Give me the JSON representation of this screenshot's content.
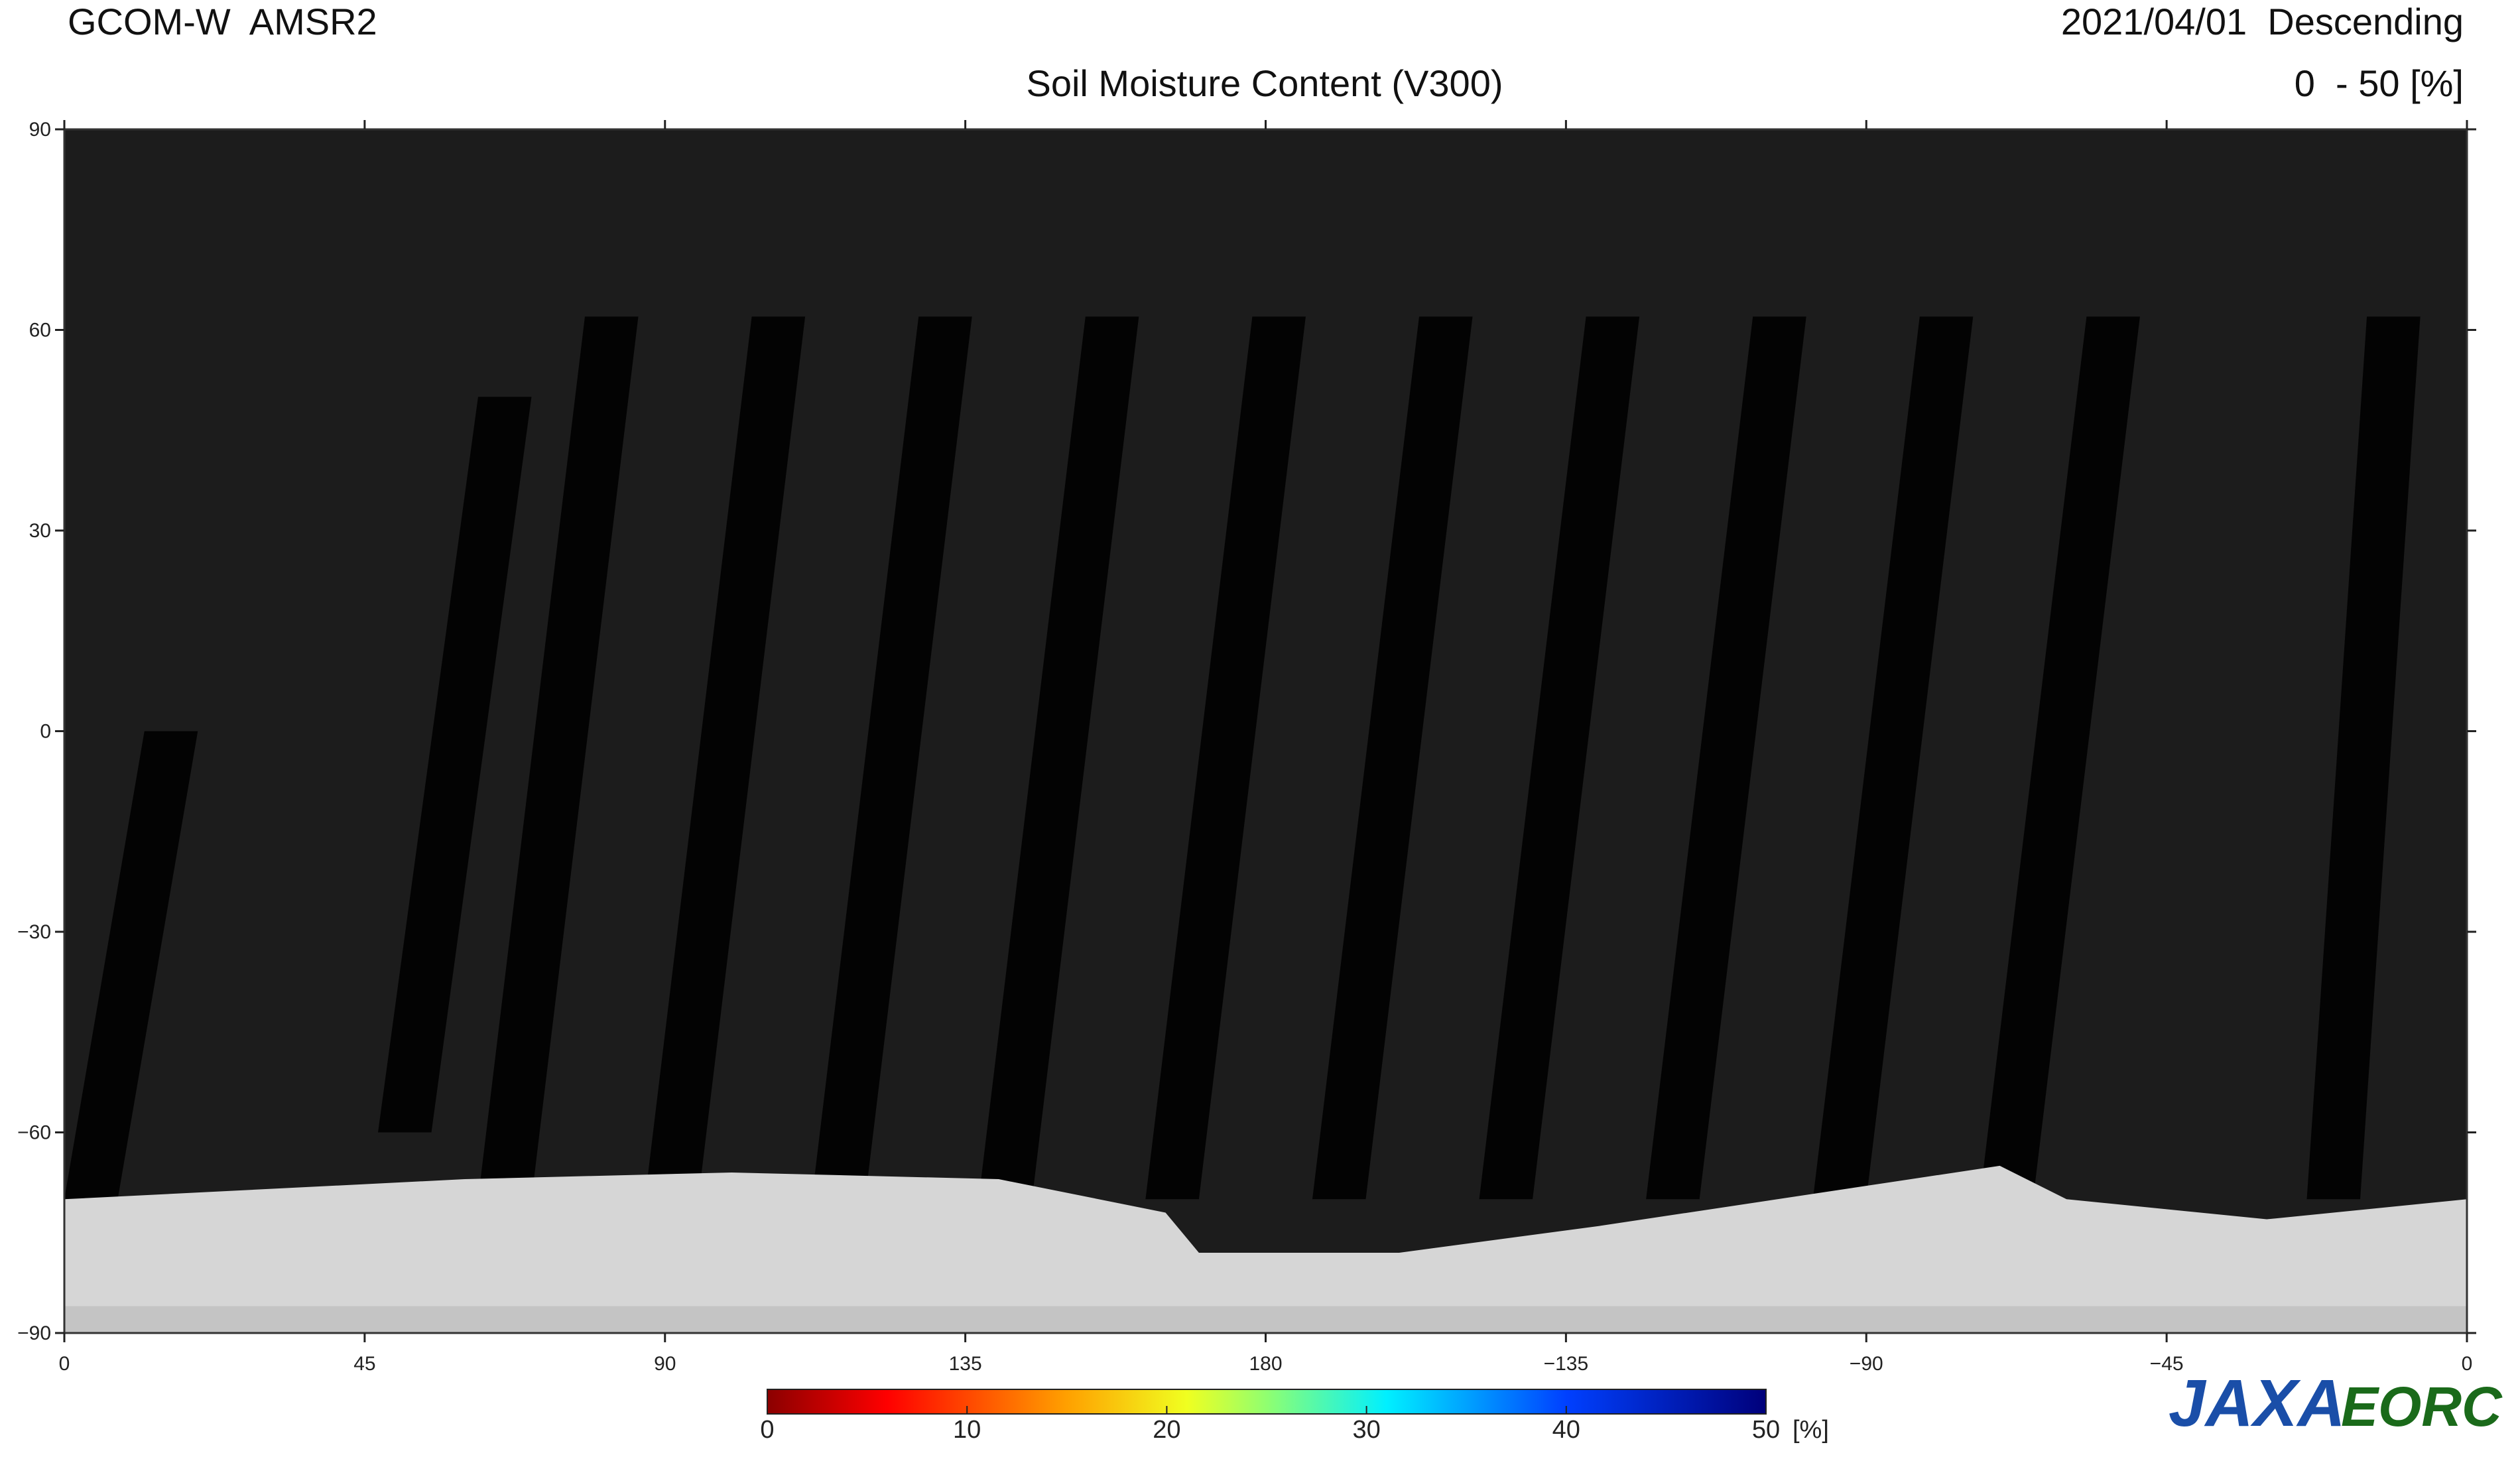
{
  "header": {
    "mission": "GCOM-W  AMSR2",
    "date": "2021/04/01  Descending",
    "title": "Soil Moisture Content (V300)",
    "range": "0  - 50 [%]"
  },
  "map": {
    "xlim": [
      0,
      360
    ],
    "ylim": [
      -90,
      90
    ],
    "lat_ticks": [
      90,
      60,
      30,
      0,
      {
        "value": -30,
        "label": "−30"
      },
      {
        "value": -60,
        "label": "−60"
      },
      {
        "value": -90,
        "label": "−90"
      }
    ],
    "lon_ticks": [
      0,
      45,
      90,
      135,
      180,
      {
        "value": 225,
        "label": "−135"
      },
      {
        "value": 270,
        "label": "−90"
      },
      {
        "value": 315,
        "label": "−45"
      },
      {
        "value": 360,
        "label": "0"
      }
    ]
  },
  "colorbar": {
    "range": [
      0,
      50
    ],
    "ticks": [
      0,
      10,
      20,
      30,
      40,
      50
    ],
    "unit": "[%]"
  },
  "logo": {
    "left": "JAXA",
    "right": "EORC"
  }
}
